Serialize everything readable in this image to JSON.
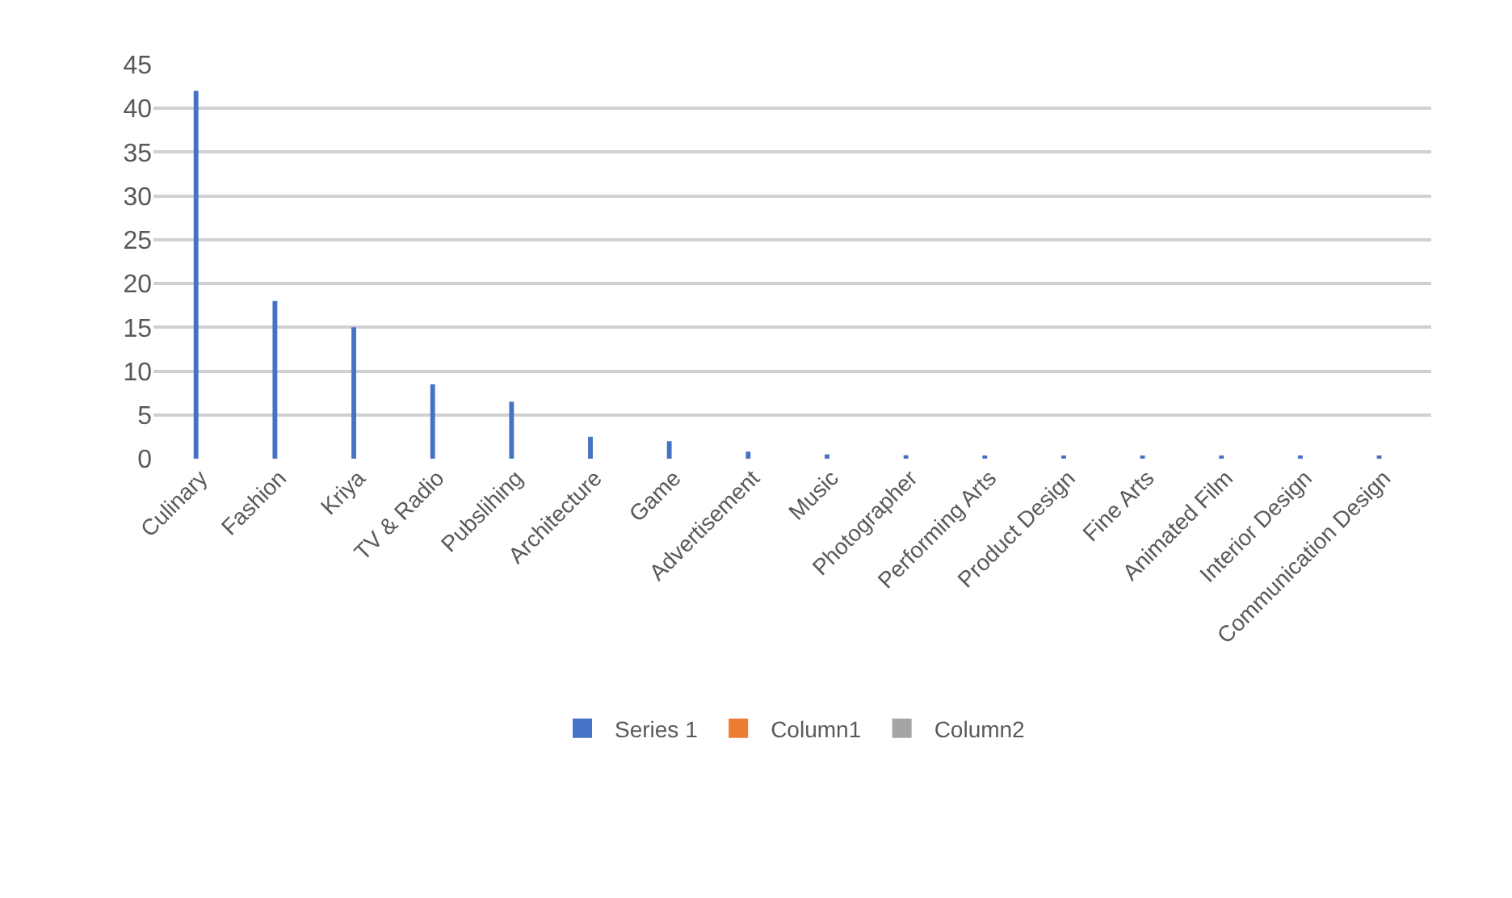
{
  "chart_data": {
    "type": "bar",
    "categories": [
      "Culinary",
      "Fashion",
      "Kriya",
      "TV & Radio",
      "Pubslihing",
      "Architecture",
      "Game",
      "Advertisement",
      "Music",
      "Photographer",
      "Performing Arts",
      "Product Design",
      "Fine Arts",
      "Animated Film",
      "Interior Design",
      "Communication Design"
    ],
    "series": [
      {
        "name": "Series 1",
        "color": "#4472c4",
        "values": [
          42,
          18,
          15,
          8.5,
          6.5,
          2.5,
          2,
          0.8,
          0.5,
          0.4,
          0.3,
          0.3,
          0.3,
          0.3,
          0.3,
          0.3
        ]
      },
      {
        "name": "Column1",
        "color": "#ed7d31",
        "values": [
          null,
          null,
          null,
          null,
          null,
          null,
          null,
          null,
          null,
          null,
          null,
          null,
          null,
          null,
          null,
          null
        ]
      },
      {
        "name": "Column2",
        "color": "#a5a5a5",
        "values": [
          null,
          null,
          null,
          null,
          null,
          null,
          null,
          null,
          null,
          null,
          null,
          null,
          null,
          null,
          null,
          null
        ]
      }
    ],
    "ylim": [
      0,
      45
    ],
    "yticks": [
      0,
      5,
      10,
      15,
      20,
      25,
      30,
      35,
      40,
      45
    ],
    "grid": "y",
    "legend": "bottom"
  }
}
